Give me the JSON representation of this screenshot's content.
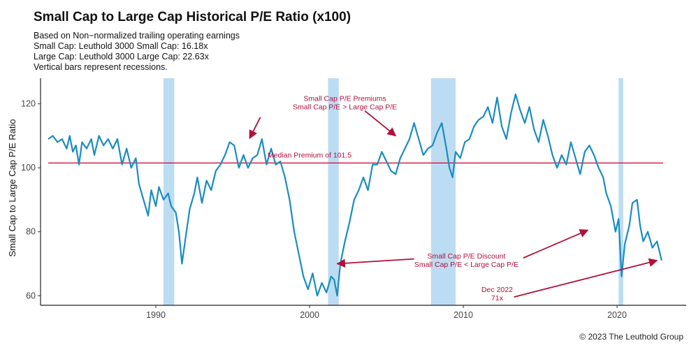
{
  "chart_data": {
    "type": "line",
    "title": "Small Cap to Large Cap Historical P/E Ratio (x100)",
    "subtitle_lines": [
      "Based on Non−normalized trailing operating earnings",
      "Small Cap: Leuthold 3000 Small Cap: 16.18x",
      "Large Cap: Leuthold 3000 Large Cap: 22.63x",
      "Vertical bars represent recessions."
    ],
    "xlabel": "",
    "ylabel": "Small Cap to Large Cap P/E Ratio",
    "xlim": [
      1982.5,
      2024.5
    ],
    "ylim": [
      57,
      128
    ],
    "x_ticks": [
      1990,
      2000,
      2010,
      2020
    ],
    "y_ticks": [
      60,
      80,
      100,
      120
    ],
    "grid": false,
    "line_color": "#1a8cc0",
    "median_line": {
      "value": 101.5,
      "label": "Median Premium of 101.5",
      "color": "#d0143c"
    },
    "recessions": [
      {
        "start": 1990.5,
        "end": 1991.2
      },
      {
        "start": 2001.2,
        "end": 2001.9
      },
      {
        "start": 2007.9,
        "end": 2009.5
      },
      {
        "start": 2020.1,
        "end": 2020.4
      }
    ],
    "recession_color": "#bcdcf2",
    "series": [
      {
        "points": [
          [
            1983.0,
            109
          ],
          [
            1983.3,
            110
          ],
          [
            1983.6,
            108
          ],
          [
            1983.9,
            109
          ],
          [
            1984.2,
            106
          ],
          [
            1984.4,
            110
          ],
          [
            1984.6,
            105
          ],
          [
            1984.8,
            107
          ],
          [
            1985.0,
            101
          ],
          [
            1985.2,
            108
          ],
          [
            1985.5,
            106
          ],
          [
            1985.8,
            109
          ],
          [
            1986.0,
            104
          ],
          [
            1986.3,
            110
          ],
          [
            1986.6,
            107
          ],
          [
            1986.9,
            109
          ],
          [
            1987.2,
            106
          ],
          [
            1987.5,
            109
          ],
          [
            1987.8,
            101
          ],
          [
            1988.1,
            106
          ],
          [
            1988.4,
            100
          ],
          [
            1988.7,
            103
          ],
          [
            1988.9,
            95
          ],
          [
            1989.2,
            90
          ],
          [
            1989.5,
            85
          ],
          [
            1989.7,
            93
          ],
          [
            1990.0,
            88
          ],
          [
            1990.2,
            94
          ],
          [
            1990.5,
            90
          ],
          [
            1990.8,
            92
          ],
          [
            1991.0,
            88
          ],
          [
            1991.3,
            86
          ],
          [
            1991.5,
            80
          ],
          [
            1991.7,
            70
          ],
          [
            1991.9,
            77
          ],
          [
            1992.2,
            87
          ],
          [
            1992.5,
            92
          ],
          [
            1992.7,
            97
          ],
          [
            1993.0,
            89
          ],
          [
            1993.3,
            96
          ],
          [
            1993.6,
            93
          ],
          [
            1993.9,
            99
          ],
          [
            1994.2,
            101
          ],
          [
            1994.5,
            104
          ],
          [
            1994.8,
            108
          ],
          [
            1995.1,
            107
          ],
          [
            1995.4,
            100
          ],
          [
            1995.7,
            104
          ],
          [
            1996.0,
            100
          ],
          [
            1996.3,
            103
          ],
          [
            1996.6,
            104
          ],
          [
            1996.9,
            109
          ],
          [
            1997.2,
            101
          ],
          [
            1997.5,
            106
          ],
          [
            1997.8,
            101
          ],
          [
            1998.1,
            102
          ],
          [
            1998.4,
            97
          ],
          [
            1998.7,
            90
          ],
          [
            1999.0,
            80
          ],
          [
            1999.3,
            73
          ],
          [
            1999.6,
            66
          ],
          [
            1999.9,
            62
          ],
          [
            2000.2,
            67
          ],
          [
            2000.5,
            60
          ],
          [
            2000.8,
            64
          ],
          [
            2001.1,
            61
          ],
          [
            2001.4,
            66
          ],
          [
            2001.6,
            65
          ],
          [
            2001.8,
            60
          ],
          [
            2002.0,
            70
          ],
          [
            2002.3,
            77
          ],
          [
            2002.6,
            83
          ],
          [
            2002.9,
            90
          ],
          [
            2003.2,
            93
          ],
          [
            2003.5,
            97
          ],
          [
            2003.8,
            93
          ],
          [
            2004.1,
            101
          ],
          [
            2004.4,
            101
          ],
          [
            2004.7,
            105
          ],
          [
            2005.0,
            102
          ],
          [
            2005.3,
            99
          ],
          [
            2005.6,
            98
          ],
          [
            2005.9,
            103
          ],
          [
            2006.2,
            106
          ],
          [
            2006.5,
            109
          ],
          [
            2006.8,
            114
          ],
          [
            2007.1,
            109
          ],
          [
            2007.4,
            104
          ],
          [
            2007.7,
            106
          ],
          [
            2008.0,
            107
          ],
          [
            2008.3,
            111
          ],
          [
            2008.6,
            114
          ],
          [
            2008.9,
            106
          ],
          [
            2009.1,
            100
          ],
          [
            2009.3,
            97
          ],
          [
            2009.5,
            105
          ],
          [
            2009.8,
            103
          ],
          [
            2010.1,
            108
          ],
          [
            2010.4,
            109
          ],
          [
            2010.7,
            113
          ],
          [
            2011.0,
            115
          ],
          [
            2011.3,
            116
          ],
          [
            2011.6,
            119
          ],
          [
            2011.9,
            114
          ],
          [
            2012.2,
            122
          ],
          [
            2012.5,
            113
          ],
          [
            2012.8,
            109
          ],
          [
            2013.1,
            117
          ],
          [
            2013.4,
            123
          ],
          [
            2013.7,
            118
          ],
          [
            2014.0,
            114
          ],
          [
            2014.3,
            119
          ],
          [
            2014.6,
            112
          ],
          [
            2014.9,
            108
          ],
          [
            2015.2,
            115
          ],
          [
            2015.5,
            110
          ],
          [
            2015.8,
            104
          ],
          [
            2016.1,
            100
          ],
          [
            2016.4,
            104
          ],
          [
            2016.7,
            101
          ],
          [
            2017.0,
            108
          ],
          [
            2017.3,
            103
          ],
          [
            2017.6,
            98
          ],
          [
            2017.9,
            105
          ],
          [
            2018.2,
            107
          ],
          [
            2018.5,
            104
          ],
          [
            2018.8,
            100
          ],
          [
            2019.1,
            97
          ],
          [
            2019.3,
            92
          ],
          [
            2019.6,
            88
          ],
          [
            2019.9,
            80
          ],
          [
            2020.1,
            84
          ],
          [
            2020.3,
            66
          ],
          [
            2020.5,
            76
          ],
          [
            2020.8,
            82
          ],
          [
            2021.0,
            89
          ],
          [
            2021.3,
            90
          ],
          [
            2021.5,
            82
          ],
          [
            2021.7,
            77
          ],
          [
            2022.0,
            80
          ],
          [
            2022.3,
            75
          ],
          [
            2022.6,
            77
          ],
          [
            2022.8,
            73
          ],
          [
            2022.9,
            71
          ]
        ]
      }
    ],
    "annotations": [
      {
        "text": "Small Cap P/E Premiums",
        "x": 2002.3,
        "y": 120.9
      },
      {
        "text": "Small Cap P/E > Large Cap P/E",
        "x": 2002.3,
        "y": 118.3
      },
      {
        "text": "Median Premium of 101.5",
        "x": 2000.0,
        "y": 103.2
      },
      {
        "text": "Small Cap P/E Discount",
        "x": 2010.2,
        "y": 71.6
      },
      {
        "text": "Small Cap P/E < Large Cap P/E",
        "x": 2010.2,
        "y": 69.0
      },
      {
        "text": "Dec 2022",
        "x": 2012.2,
        "y": 61.1
      },
      {
        "text": "71x",
        "x": 2012.2,
        "y": 58.5
      }
    ],
    "arrows": [
      {
        "from": [
          1996.8,
          115.8
        ],
        "to": [
          1996.1,
          109.2
        ]
      },
      {
        "from": [
          2003.6,
          117.8
        ],
        "to": [
          2005.6,
          110.0
        ]
      },
      {
        "from": [
          2006.8,
          71.5
        ],
        "to": [
          2001.8,
          70.0
        ]
      },
      {
        "from": [
          2013.9,
          71.8
        ],
        "to": [
          2018.1,
          80.5
        ]
      },
      {
        "from": [
          2013.3,
          59.6
        ],
        "to": [
          2022.6,
          71.0
        ]
      }
    ]
  },
  "footer": {
    "credit": "© 2023 The Leuthold Group"
  }
}
